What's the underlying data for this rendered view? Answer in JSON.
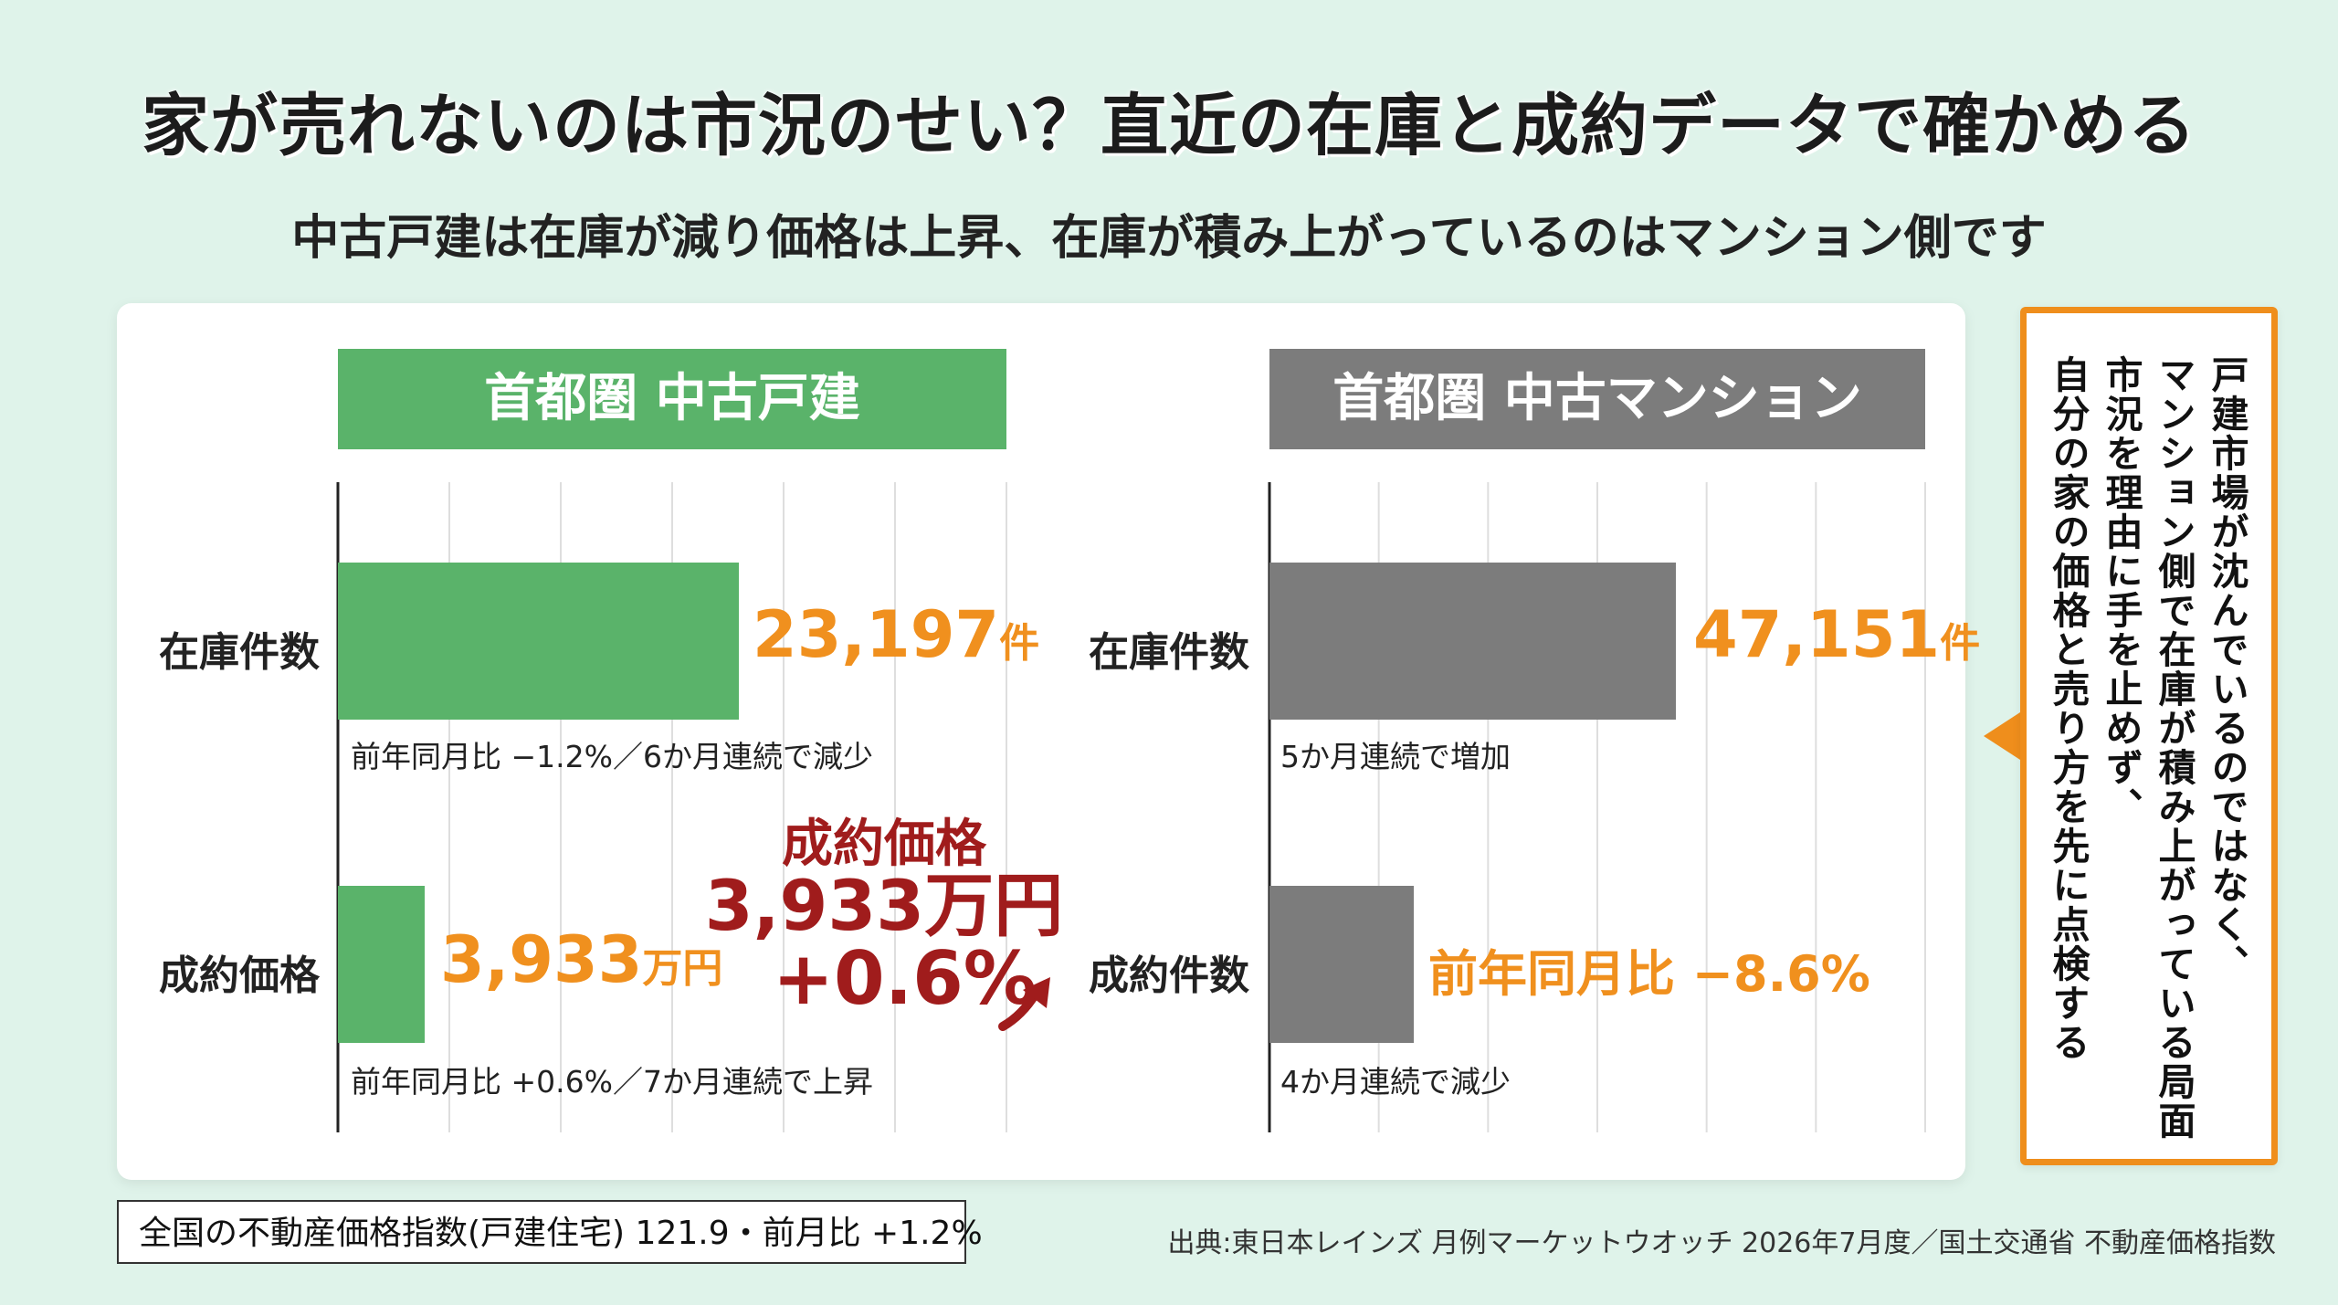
{
  "title": "家が売れないのは市況のせい？直近の在庫と成約データで確かめる",
  "subtitle": "中古戸建は在庫が減り価格は上昇、在庫が積み上がっているのはマンション側です",
  "colors": {
    "house": "#5ab36a",
    "mansion": "#7c7c7c",
    "accent": "#f0901e",
    "callout": "#a01c1c",
    "side_border": "#ef8e1c"
  },
  "chart_data": [
    {
      "type": "bar",
      "title": "首都圏 中古戸建",
      "orientation": "horizontal",
      "categories": [
        "在庫件数",
        "成約価格"
      ],
      "values": [
        23197,
        3933
      ],
      "value_labels": [
        {
          "num": "23,197",
          "unit": "件"
        },
        {
          "num": "3,933",
          "unit": "万円"
        }
      ],
      "notes": [
        "前年同月比 −1.2%／6か月連続で減少",
        "前年同月比 +0.6%／7か月連続で上昇"
      ],
      "callout": {
        "title": "成約価格",
        "value": "3,933万円",
        "change": "+0.6%"
      },
      "display_fraction": [
        0.6,
        0.13
      ],
      "grid": true,
      "color": "#5ab36a"
    },
    {
      "type": "bar",
      "title": "首都圏 中古マンション",
      "orientation": "horizontal",
      "categories": [
        "在庫件数",
        "成約件数"
      ],
      "values": [
        47151,
        null
      ],
      "value_labels": [
        {
          "num": "47,151",
          "unit": "件"
        },
        {
          "num": "前年同月比 −8.6%",
          "unit": ""
        }
      ],
      "notes": [
        "5か月連続で増加",
        "4か月連続で減少"
      ],
      "display_fraction": [
        0.62,
        0.22
      ],
      "grid": true,
      "color": "#7c7c7c"
    }
  ],
  "side_text": "戸建市場が沈んでいるのではなく、マンション側で在庫が積み上がっている局面\n市況を理由に手を止めず、\n自分の家の価格と売り方を先に点検する",
  "side_lines": [
    "戸建市場が沈んでいるのではなく、",
    "マンション側で在庫が積み上がっている局面",
    "市況を理由に手を止めず、",
    "自分の家の価格と売り方を先に点検する"
  ],
  "index_text": "全国の不動産価格指数(戸建住宅) 121.9・前月比 +1.2%",
  "source_text": "出典:東日本レインズ 月例マーケットウオッチ 2026年7月度／国土交通省 不動産価格指数"
}
